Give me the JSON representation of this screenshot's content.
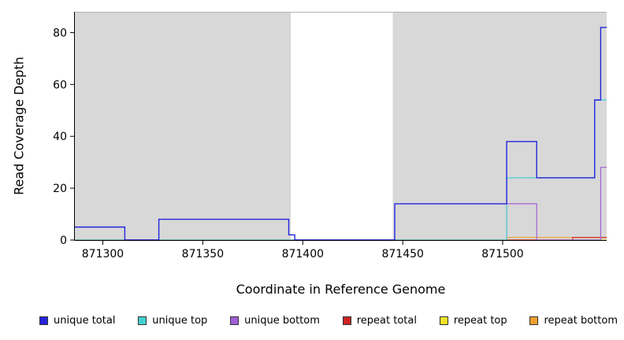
{
  "chart_data": {
    "type": "line",
    "subtype": "step-coverage-plot",
    "title": "",
    "xlabel": "Coordinate in Reference Genome",
    "ylabel": "Read Coverage Depth",
    "xlim": [
      871286,
      871552
    ],
    "ylim": [
      0,
      88
    ],
    "xticks": [
      871300,
      871350,
      871400,
      871450,
      871500
    ],
    "yticks": [
      0,
      20,
      40,
      60,
      80
    ],
    "grid": false,
    "legend_position": "bottom",
    "gap_regions": [
      [
        871394,
        871445
      ]
    ],
    "colors": {
      "panel_bg": "#d8d8d8",
      "gap_bg": "#ffffff",
      "axis": "#000000",
      "unique_total": "#2424dc",
      "unique_top": "#45d1d1",
      "unique_bottom": "#a05fd6",
      "repeat_total": "#cc2222",
      "repeat_top": "#ede32a",
      "repeat_bottom": "#ef9f2f"
    },
    "series": [
      {
        "key": "repeat_top",
        "name": "repeat top",
        "color": "#ede32a",
        "steps": [
          [
            871286,
            0
          ]
        ]
      },
      {
        "key": "repeat_bottom",
        "name": "repeat bottom",
        "color": "#ef9f2f",
        "steps": [
          [
            871286,
            0
          ],
          [
            871502,
            1
          ]
        ]
      },
      {
        "key": "repeat_total",
        "name": "repeat total",
        "color": "#cc2222",
        "steps": [
          [
            871286,
            0
          ],
          [
            871535,
            1
          ]
        ]
      },
      {
        "key": "unique_bottom",
        "name": "unique bottom",
        "color": "#a05fd6",
        "steps": [
          [
            871286,
            0
          ],
          [
            871502,
            14
          ],
          [
            871517,
            0
          ],
          [
            871549,
            28
          ]
        ]
      },
      {
        "key": "unique_top",
        "name": "unique top",
        "color": "#45d1d1",
        "steps": [
          [
            871286,
            0
          ],
          [
            871502,
            24
          ],
          [
            871546,
            54
          ]
        ]
      },
      {
        "key": "unique_total",
        "name": "unique total",
        "color": "#2424dc",
        "steps": [
          [
            871286,
            5
          ],
          [
            871311,
            0
          ],
          [
            871328,
            8
          ],
          [
            871393,
            2
          ],
          [
            871396,
            0
          ],
          [
            871446,
            14
          ],
          [
            871502,
            38
          ],
          [
            871517,
            24
          ],
          [
            871546,
            54
          ],
          [
            871549,
            82
          ]
        ]
      }
    ],
    "legend": [
      {
        "key": "unique_total",
        "label": "unique total",
        "color": "#2424dc"
      },
      {
        "key": "unique_top",
        "label": "unique top",
        "color": "#45d1d1"
      },
      {
        "key": "unique_bottom",
        "label": "unique bottom",
        "color": "#a05fd6"
      },
      {
        "key": "repeat_total",
        "label": "repeat total",
        "color": "#cc2222"
      },
      {
        "key": "repeat_top",
        "label": "repeat top",
        "color": "#ede32a"
      },
      {
        "key": "repeat_bottom",
        "label": "repeat bottom",
        "color": "#ef9f2f"
      }
    ]
  }
}
